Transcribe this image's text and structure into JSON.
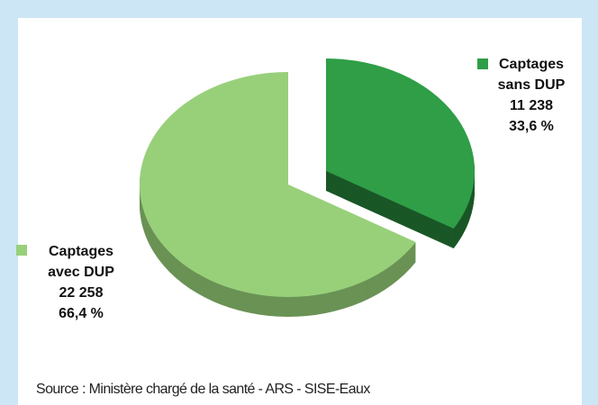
{
  "chart_data": {
    "type": "pie",
    "categories": [
      "Captages sans DUP",
      "Captages avec DUP"
    ],
    "values": [
      11238,
      22258
    ],
    "value_labels": [
      "11 238",
      "22 258"
    ],
    "percents": [
      33.6,
      66.4
    ],
    "percent_labels": [
      "33,6 %",
      "66,4 %"
    ],
    "colors": [
      "#2f9e47",
      "#98d07a"
    ],
    "source": "Source : Ministère chargé de la santé - ARS - SISE-Eaux"
  }
}
